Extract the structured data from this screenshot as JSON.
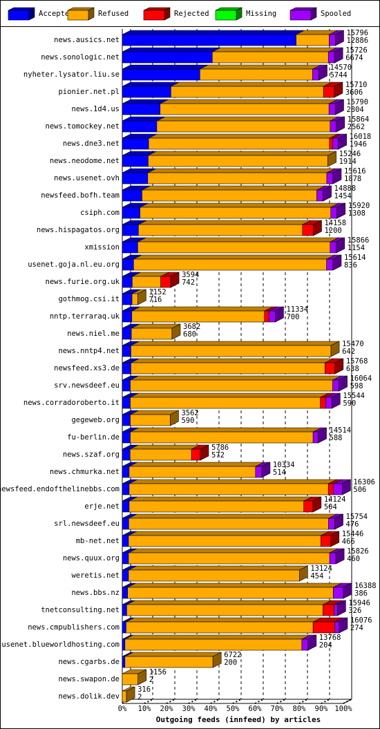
{
  "chart_data": {
    "type": "bar3d-stacked-horizontal",
    "xlabel": "Outgoing feeds (innfeed) by articles",
    "categories": [
      "news.ausics.net",
      "news.sonologic.net",
      "nyheter.lysator.liu.se",
      "pionier.net.pl",
      "news.1d4.us",
      "news.tomockey.net",
      "news.dne3.net",
      "news.neodome.net",
      "news.usenet.ovh",
      "newsfeed.bofh.team",
      "csiph.com",
      "news.hispagatos.org",
      "xmission",
      "usenet.goja.nl.eu.org",
      "news.furie.org.uk",
      "gothmog.csi.it",
      "nntp.terraraq.uk",
      "news.niel.me",
      "news.nntp4.net",
      "newsfeed.xs3.de",
      "srv.newsdeef.eu",
      "news.corradoroberto.it",
      "gegeweb.org",
      "fu-berlin.de",
      "news.szaf.org",
      "news.chmurka.net",
      "newsfeed.endofthelinebbs.com",
      "erje.net",
      "srl.newsdeef.eu",
      "mb-net.net",
      "news.quux.org",
      "weretis.net",
      "news.bbs.nz",
      "tnetconsulting.net",
      "news.cmpublishers.com",
      "usenet.blueworldhosting.com",
      "news.cgarbs.de",
      "news.swapon.de",
      "news.dolik.dev"
    ],
    "offered": [
      15796,
      15726,
      14570,
      15710,
      15790,
      15864,
      16018,
      15246,
      15616,
      14888,
      15920,
      14158,
      15866,
      15614,
      3594,
      1152,
      11334,
      3682,
      15470,
      15768,
      16064,
      15544,
      3562,
      14514,
      5786,
      10334,
      16306,
      14124,
      15754,
      15446,
      15826,
      13124,
      16388,
      15946,
      16076,
      13768,
      6722,
      1156,
      316
    ],
    "accepted": [
      12886,
      6674,
      5744,
      3606,
      2804,
      2562,
      1946,
      1914,
      1878,
      1454,
      1308,
      1200,
      1154,
      836,
      742,
      716,
      700,
      680,
      642,
      638,
      598,
      590,
      590,
      588,
      572,
      514,
      506,
      504,
      476,
      466,
      460,
      454,
      386,
      326,
      274,
      204,
      200,
      2,
      2
    ],
    "series": [
      {
        "name": "Accepted",
        "color": "#0000ff",
        "values": [
          78.6,
          40.7,
          35.1,
          22.0,
          17.1,
          15.6,
          11.9,
          11.7,
          11.5,
          8.9,
          8.0,
          7.3,
          7.0,
          5.1,
          4.5,
          4.4,
          4.3,
          4.1,
          3.9,
          3.9,
          3.6,
          3.6,
          3.6,
          3.6,
          3.5,
          3.1,
          3.1,
          3.1,
          2.9,
          2.8,
          2.8,
          2.8,
          2.4,
          2.0,
          1.7,
          1.2,
          1.2,
          0.0,
          0.0
        ]
      },
      {
        "name": "Refused",
        "color": "#ffaa00",
        "values": [
          15.0,
          52.5,
          51.0,
          69.0,
          76.4,
          78.4,
          81.8,
          81.3,
          81.0,
          79.1,
          86.3,
          74.2,
          87.0,
          87.3,
          12.9,
          2.6,
          60.0,
          18.4,
          90.5,
          87.8,
          91.6,
          86.0,
          18.1,
          82.7,
          27.8,
          57.2,
          90.1,
          79.0,
          90.4,
          87.0,
          91.0,
          77.3,
          93.0,
          88.8,
          84.6,
          80.0,
          39.8,
          7.1,
          1.9
        ]
      },
      {
        "name": "Rejected",
        "color": "#ff0000",
        "values": [
          0,
          0,
          0,
          4.9,
          0,
          0,
          1.5,
          0,
          0,
          0,
          0,
          4.9,
          0,
          0,
          4.5,
          0,
          2.0,
          0,
          0,
          4.5,
          0,
          2.4,
          0,
          0,
          4.0,
          0,
          2.2,
          4.1,
          0,
          4.5,
          0,
          0,
          0,
          5.0,
          9.8,
          0,
          0,
          0,
          0
        ]
      },
      {
        "name": "Missing",
        "color": "#00ff00",
        "values": [
          0,
          0,
          0,
          0,
          0,
          0,
          0,
          0,
          0,
          0,
          0,
          0,
          0,
          0,
          0,
          0,
          0,
          0,
          0,
          0,
          0,
          0,
          0,
          0,
          0,
          0,
          0,
          0,
          0,
          0,
          0,
          0,
          0,
          0,
          0,
          0,
          0,
          0,
          0
        ]
      },
      {
        "name": "Spooled",
        "color": "#a000ff",
        "values": [
          2.8,
          2.8,
          2.8,
          0,
          2.9,
          2.8,
          2.5,
          0,
          2.8,
          2.8,
          2.8,
          0,
          2.8,
          2.9,
          0,
          0,
          2.9,
          0,
          0,
          0,
          2.8,
          2.8,
          0,
          2.3,
          0,
          2.8,
          4.1,
          0,
          2.8,
          0,
          2.8,
          0,
          4.6,
          1.5,
          2.0,
          2.8,
          0,
          0,
          0
        ]
      }
    ],
    "xlim": [
      0,
      100
    ],
    "xticks": [
      {
        "value": 0,
        "label": "0%"
      },
      {
        "value": 10,
        "label": "10%"
      },
      {
        "value": 20,
        "label": "20%"
      },
      {
        "value": 30,
        "label": "30%"
      },
      {
        "value": 40,
        "label": "40%"
      },
      {
        "value": 50,
        "label": "50%"
      },
      {
        "value": 60,
        "label": "60%"
      },
      {
        "value": 70,
        "label": "70%"
      },
      {
        "value": 80,
        "label": "80%"
      },
      {
        "value": 90,
        "label": "90%"
      },
      {
        "value": 100,
        "label": "100%"
      }
    ],
    "grid": true
  }
}
